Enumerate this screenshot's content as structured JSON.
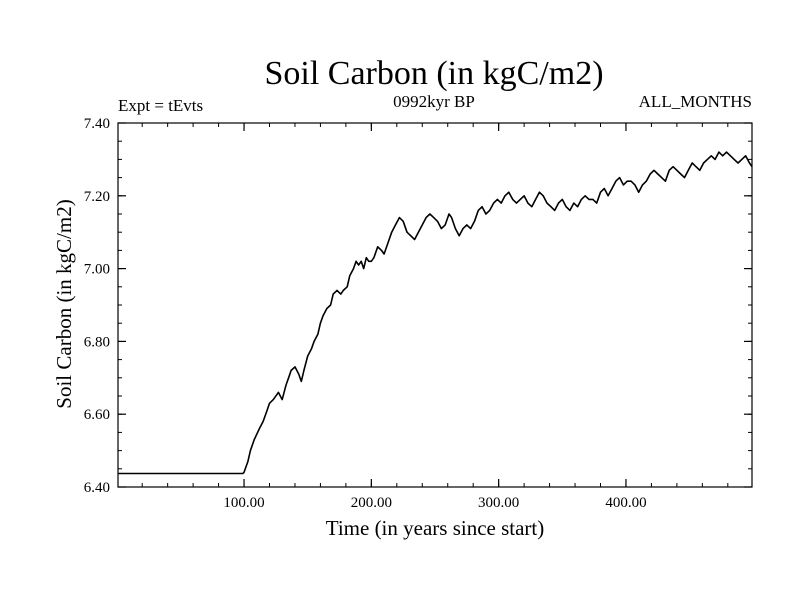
{
  "chart_data": {
    "type": "line",
    "title": "Soil Carbon (in kgC/m2)",
    "subtitle_left": "Expt = tEvts",
    "subtitle_center": "0992kyr BP",
    "subtitle_right": "ALL_MONTHS",
    "xlabel": "Time (in years since start)",
    "ylabel": "Soil Carbon (in kgC/m2)",
    "xlim": [
      1,
      499
    ],
    "ylim": [
      6.4,
      7.4
    ],
    "x_ticks": [
      {
        "value": 100,
        "label": "100.00"
      },
      {
        "value": 200,
        "label": "200.00"
      },
      {
        "value": 300,
        "label": "300.00"
      },
      {
        "value": 400,
        "label": "400.00"
      }
    ],
    "y_ticks": [
      {
        "value": 6.4,
        "label": "6.40"
      },
      {
        "value": 6.6,
        "label": "6.60"
      },
      {
        "value": 6.8,
        "label": "6.80"
      },
      {
        "value": 7.0,
        "label": "7.00"
      },
      {
        "value": 7.2,
        "label": "7.20"
      },
      {
        "value": 7.4,
        "label": "7.40"
      }
    ],
    "x_minor_step": 20,
    "y_minor_step": 0.05,
    "series": [
      {
        "name": "Soil Carbon",
        "color": "#000000",
        "x": [
          1,
          99,
          100,
          103,
          105,
          108,
          112,
          115,
          118,
          120,
          123,
          127,
          130,
          133,
          135,
          137,
          140,
          143,
          145,
          147,
          150,
          153,
          155,
          158,
          160,
          162,
          165,
          168,
          170,
          173,
          176,
          178,
          181,
          183,
          186,
          188,
          190,
          192,
          194,
          196,
          198,
          200,
          202,
          205,
          208,
          210,
          213,
          216,
          219,
          222,
          225,
          228,
          231,
          234,
          237,
          240,
          243,
          246,
          249,
          252,
          255,
          258,
          261,
          263,
          266,
          269,
          272,
          275,
          278,
          281,
          284,
          287,
          290,
          293,
          296,
          299,
          302,
          305,
          308,
          311,
          314,
          317,
          320,
          323,
          326,
          329,
          332,
          335,
          338,
          341,
          344,
          347,
          350,
          353,
          356,
          359,
          362,
          365,
          368,
          371,
          374,
          377,
          380,
          383,
          386,
          389,
          392,
          395,
          398,
          401,
          404,
          407,
          410,
          413,
          416,
          419,
          422,
          425,
          428,
          431,
          434,
          437,
          440,
          443,
          446,
          449,
          452,
          455,
          458,
          461,
          464,
          467,
          470,
          473,
          476,
          479,
          482,
          485,
          488,
          491,
          494,
          497,
          499
        ],
        "values": [
          6.437,
          6.437,
          6.44,
          6.47,
          6.5,
          6.53,
          6.56,
          6.58,
          6.61,
          6.63,
          6.64,
          6.66,
          6.64,
          6.68,
          6.7,
          6.72,
          6.73,
          6.71,
          6.69,
          6.72,
          6.76,
          6.78,
          6.8,
          6.82,
          6.85,
          6.87,
          6.89,
          6.9,
          6.93,
          6.94,
          6.93,
          6.94,
          6.95,
          6.98,
          7.0,
          7.02,
          7.01,
          7.02,
          7.0,
          7.03,
          7.02,
          7.02,
          7.03,
          7.06,
          7.05,
          7.04,
          7.07,
          7.1,
          7.12,
          7.14,
          7.13,
          7.1,
          7.09,
          7.08,
          7.1,
          7.12,
          7.14,
          7.15,
          7.14,
          7.13,
          7.11,
          7.12,
          7.15,
          7.14,
          7.11,
          7.09,
          7.11,
          7.12,
          7.11,
          7.13,
          7.16,
          7.17,
          7.15,
          7.16,
          7.18,
          7.19,
          7.18,
          7.2,
          7.21,
          7.19,
          7.18,
          7.19,
          7.2,
          7.18,
          7.17,
          7.19,
          7.21,
          7.2,
          7.18,
          7.17,
          7.16,
          7.18,
          7.19,
          7.17,
          7.16,
          7.18,
          7.17,
          7.19,
          7.2,
          7.19,
          7.19,
          7.18,
          7.21,
          7.22,
          7.2,
          7.22,
          7.24,
          7.25,
          7.23,
          7.24,
          7.24,
          7.23,
          7.21,
          7.23,
          7.24,
          7.26,
          7.27,
          7.26,
          7.25,
          7.24,
          7.27,
          7.28,
          7.27,
          7.26,
          7.25,
          7.27,
          7.29,
          7.28,
          7.27,
          7.29,
          7.3,
          7.31,
          7.3,
          7.32,
          7.31,
          7.32,
          7.31,
          7.3,
          7.29,
          7.3,
          7.31,
          7.29,
          7.28
        ]
      }
    ]
  }
}
